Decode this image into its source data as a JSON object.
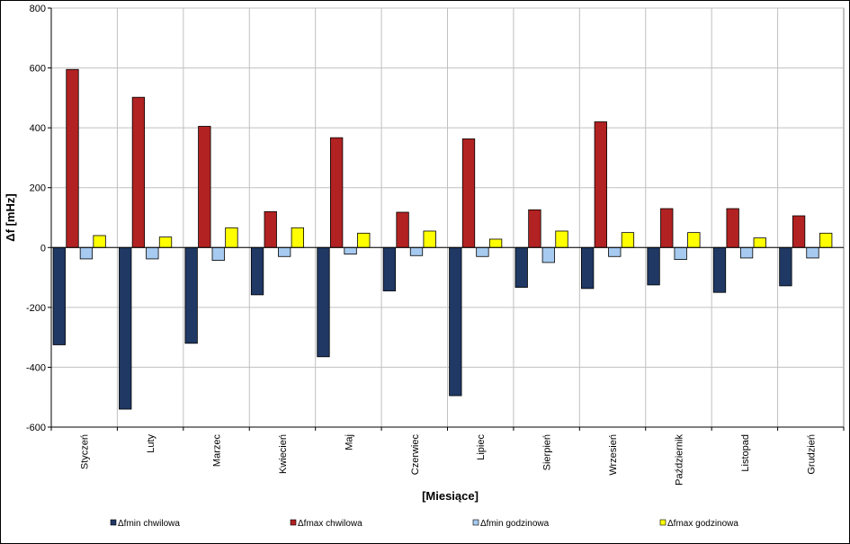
{
  "chart_data": {
    "type": "bar",
    "xlabel": "[Miesiące]",
    "ylabel": "Δf [mHz]",
    "ylim": [
      -600,
      800
    ],
    "yticks": [
      -600,
      -400,
      -200,
      0,
      200,
      400,
      600,
      800
    ],
    "grid": true,
    "legend_position": "bottom",
    "categories": [
      "Styczeń",
      "Luty",
      "Marzec",
      "Kwiecień",
      "Maj",
      "Czerwiec",
      "Lipiec",
      "Sierpień",
      "Wrzesień",
      "Październik",
      "Listopad",
      "Grudzień"
    ],
    "series": [
      {
        "name": "Δfmin chwilowa",
        "color": "#1f3864",
        "values": [
          -325,
          -540,
          -320,
          -158,
          -365,
          -145,
          -495,
          -133,
          -137,
          -125,
          -150,
          -128
        ]
      },
      {
        "name": "Δfmax chwilowa",
        "color": "#b22222",
        "values": [
          595,
          502,
          405,
          120,
          367,
          118,
          363,
          126,
          420,
          130,
          130,
          106
        ]
      },
      {
        "name": "Δfmin godzinowa",
        "color": "#a6caf0",
        "values": [
          -38,
          -38,
          -43,
          -30,
          -22,
          -27,
          -30,
          -50,
          -30,
          -40,
          -35,
          -35
        ]
      },
      {
        "name": "Δfmax godzinowa",
        "color": "#ffff00",
        "values": [
          40,
          35,
          66,
          66,
          48,
          55,
          28,
          55,
          50,
          50,
          32,
          48
        ]
      }
    ]
  }
}
